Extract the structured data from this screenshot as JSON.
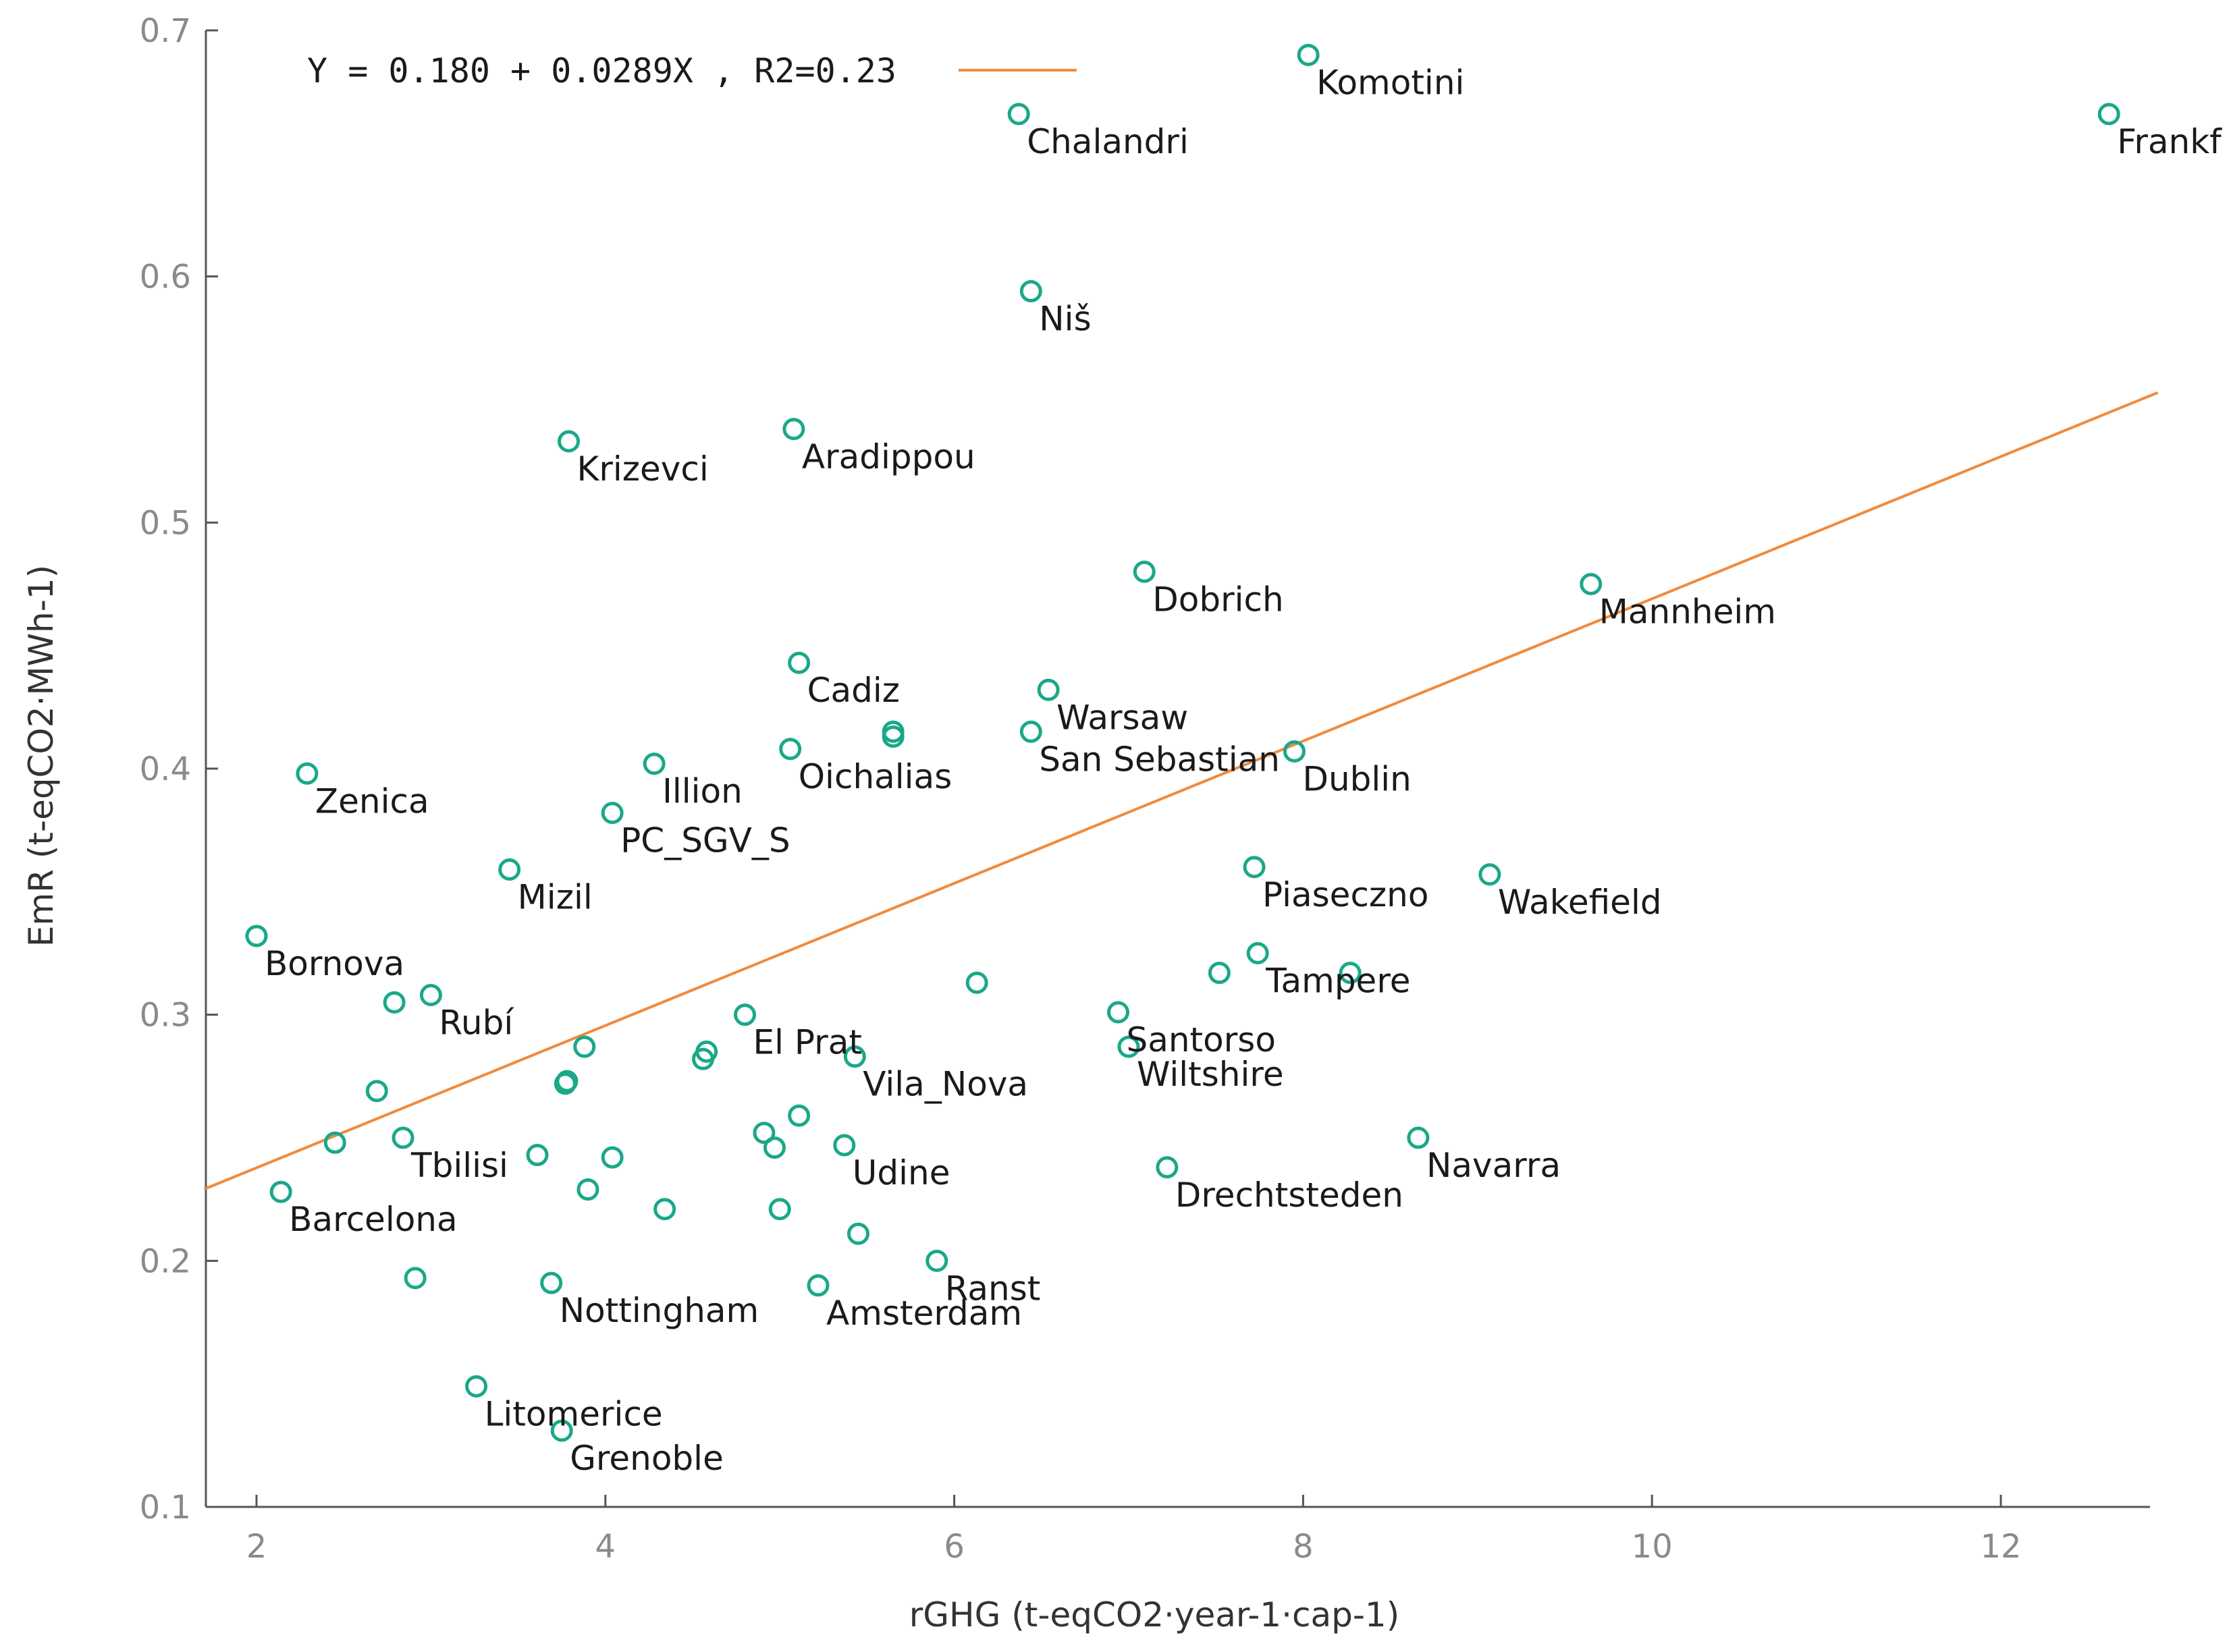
{
  "chart_data": {
    "type": "scatter",
    "title": "",
    "xlabel": "rGHG (t-eqCO2·year-1·cap-1)",
    "ylabel": "EmR (t-eqCO2·MWh-1)",
    "xlim": [
      1.7,
      12.9
    ],
    "ylim": [
      0.1,
      0.7
    ],
    "xticks": [
      2,
      4,
      6,
      8,
      10,
      12
    ],
    "yticks": [
      0.1,
      0.2,
      0.3,
      0.4,
      0.5,
      0.6,
      0.7
    ],
    "grid": false,
    "legend_position": "top-left",
    "marker_color": "#1aa889",
    "fit_color": "#f08a3c",
    "fit_line": {
      "label": "Y = 0.180 + 0.0289X , R2=0.23",
      "intercept": 0.18,
      "slope": 0.0289
    },
    "points": [
      {
        "x": 8.03,
        "y": 0.69,
        "label": "Komotini"
      },
      {
        "x": 6.37,
        "y": 0.666,
        "label": "Chalandri"
      },
      {
        "x": 12.62,
        "y": 0.666,
        "label": "Frankf"
      },
      {
        "x": 6.44,
        "y": 0.594,
        "label": "Niš"
      },
      {
        "x": 5.08,
        "y": 0.538,
        "label": "Aradippou"
      },
      {
        "x": 3.79,
        "y": 0.533,
        "label": "Krizevci"
      },
      {
        "x": 7.09,
        "y": 0.48,
        "label": "Dobrich"
      },
      {
        "x": 9.65,
        "y": 0.475,
        "label": "Mannheim"
      },
      {
        "x": 5.11,
        "y": 0.443,
        "label": "Cadiz"
      },
      {
        "x": 6.54,
        "y": 0.432,
        "label": "Warsaw"
      },
      {
        "x": 5.65,
        "y": 0.415,
        "label": ""
      },
      {
        "x": 5.65,
        "y": 0.413,
        "label": ""
      },
      {
        "x": 6.44,
        "y": 0.415,
        "label": "San Sebastian"
      },
      {
        "x": 5.06,
        "y": 0.408,
        "label": "Oichalias"
      },
      {
        "x": 7.95,
        "y": 0.407,
        "label": "Dublin"
      },
      {
        "x": 4.28,
        "y": 0.402,
        "label": "Illion"
      },
      {
        "x": 2.29,
        "y": 0.398,
        "label": "Zenica"
      },
      {
        "x": 4.04,
        "y": 0.382,
        "label": "PC_SGV_S"
      },
      {
        "x": 3.45,
        "y": 0.359,
        "label": "Mizil"
      },
      {
        "x": 7.72,
        "y": 0.36,
        "label": "Piaseczno"
      },
      {
        "x": 9.07,
        "y": 0.357,
        "label": "Wakefield"
      },
      {
        "x": 2.0,
        "y": 0.332,
        "label": "Bornova"
      },
      {
        "x": 7.74,
        "y": 0.325,
        "label": "Tampere"
      },
      {
        "x": 7.52,
        "y": 0.317,
        "label": ""
      },
      {
        "x": 8.27,
        "y": 0.317,
        "label": ""
      },
      {
        "x": 6.13,
        "y": 0.313,
        "label": ""
      },
      {
        "x": 3.0,
        "y": 0.308,
        "label": "Rubí"
      },
      {
        "x": 2.79,
        "y": 0.305,
        "label": ""
      },
      {
        "x": 6.94,
        "y": 0.301,
        "label": "Santorso"
      },
      {
        "x": 4.8,
        "y": 0.3,
        "label": "El Prat"
      },
      {
        "x": 3.88,
        "y": 0.287,
        "label": ""
      },
      {
        "x": 4.58,
        "y": 0.285,
        "label": ""
      },
      {
        "x": 4.56,
        "y": 0.282,
        "label": ""
      },
      {
        "x": 5.43,
        "y": 0.283,
        "label": "Vila_Nova"
      },
      {
        "x": 7.0,
        "y": 0.287,
        "label": "Wiltshire"
      },
      {
        "x": 3.78,
        "y": 0.273,
        "label": ""
      },
      {
        "x": 3.77,
        "y": 0.272,
        "label": ""
      },
      {
        "x": 2.69,
        "y": 0.269,
        "label": ""
      },
      {
        "x": 5.11,
        "y": 0.259,
        "label": ""
      },
      {
        "x": 4.91,
        "y": 0.252,
        "label": ""
      },
      {
        "x": 4.97,
        "y": 0.246,
        "label": ""
      },
      {
        "x": 5.37,
        "y": 0.247,
        "label": "Udine"
      },
      {
        "x": 2.84,
        "y": 0.25,
        "label": "Tbilisi"
      },
      {
        "x": 2.45,
        "y": 0.248,
        "label": ""
      },
      {
        "x": 3.61,
        "y": 0.243,
        "label": ""
      },
      {
        "x": 4.04,
        "y": 0.242,
        "label": ""
      },
      {
        "x": 8.66,
        "y": 0.25,
        "label": "Navarra"
      },
      {
        "x": 7.22,
        "y": 0.238,
        "label": "Drechtsteden"
      },
      {
        "x": 2.14,
        "y": 0.228,
        "label": "Barcelona"
      },
      {
        "x": 3.9,
        "y": 0.229,
        "label": ""
      },
      {
        "x": 4.34,
        "y": 0.221,
        "label": ""
      },
      {
        "x": 5.0,
        "y": 0.221,
        "label": ""
      },
      {
        "x": 5.45,
        "y": 0.211,
        "label": ""
      },
      {
        "x": 5.9,
        "y": 0.2,
        "label": "Ranst"
      },
      {
        "x": 2.91,
        "y": 0.193,
        "label": ""
      },
      {
        "x": 3.69,
        "y": 0.191,
        "label": "Nottingham"
      },
      {
        "x": 5.22,
        "y": 0.19,
        "label": "Amsterdam"
      },
      {
        "x": 3.26,
        "y": 0.149,
        "label": "Litomerice"
      },
      {
        "x": 3.75,
        "y": 0.131,
        "label": "Grenoble"
      }
    ]
  }
}
